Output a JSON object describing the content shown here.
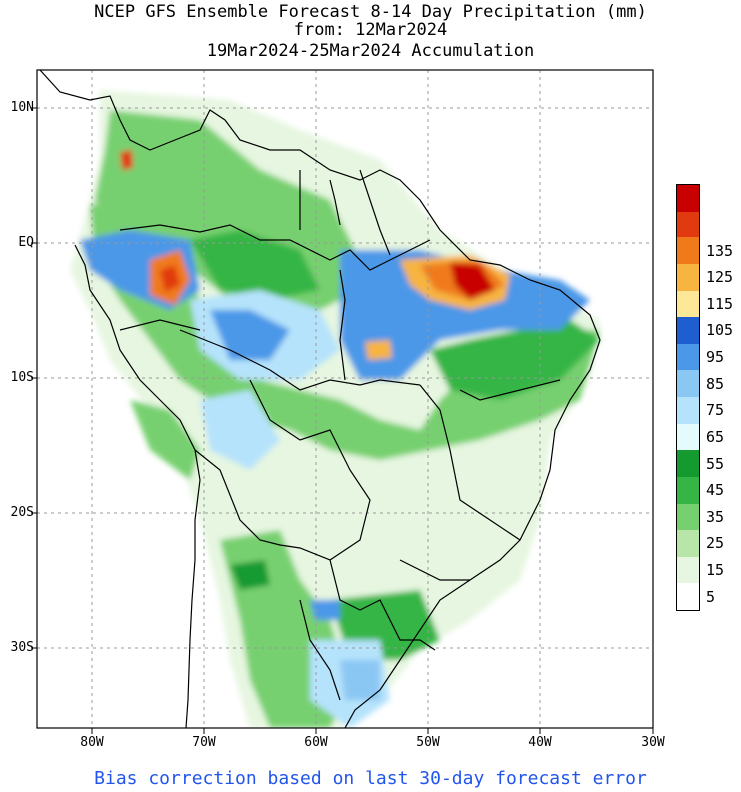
{
  "title": {
    "line1": "NCEP GFS Ensemble Forecast 8-14 Day Precipitation (mm)",
    "line2": "from: 12Mar2024",
    "line3": "19Mar2024-25Mar2024 Accumulation"
  },
  "axes": {
    "lat_labels": [
      "10N",
      "EQ",
      "10S",
      "20S",
      "30S"
    ],
    "lon_labels": [
      "80W",
      "70W",
      "60W",
      "50W",
      "40W",
      "30W"
    ]
  },
  "legend": {
    "levels": [
      "5",
      "15",
      "25",
      "35",
      "45",
      "55",
      "65",
      "75",
      "85",
      "95",
      "105",
      "115",
      "125",
      "135"
    ],
    "colors": [
      "#ffffff",
      "#e6f6e0",
      "#b7e6a8",
      "#77d070",
      "#35b545",
      "#159a30",
      "#e4fbfb",
      "#b5e3fb",
      "#8bc7f3",
      "#4c98e8",
      "#1f5ed0",
      "#fde898",
      "#f7b440",
      "#f07a1a",
      "#e13a10",
      "#c80000"
    ]
  },
  "footer": "Bias correction based on last 30-day forecast error"
}
